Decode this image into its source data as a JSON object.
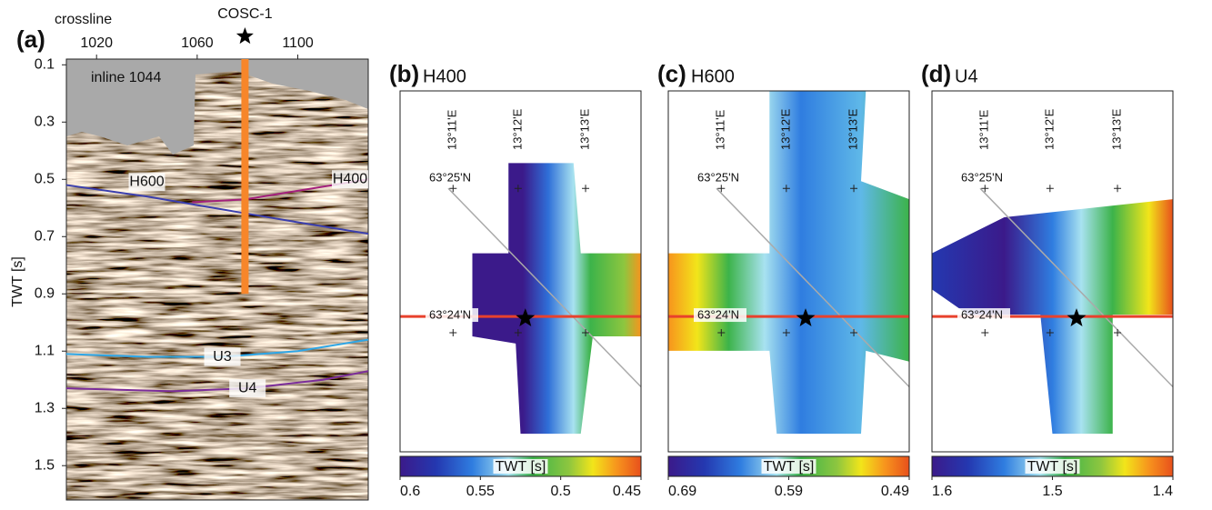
{
  "panel_a": {
    "label": "(a)",
    "x_label": "crossline",
    "xlim": [
      1008,
      1128
    ],
    "xticks": [
      1020,
      1060,
      1100
    ],
    "y_label": "TWT [s]",
    "ylim": [
      0.08,
      1.62
    ],
    "yticks": [
      0.1,
      0.3,
      0.5,
      0.7,
      0.9,
      1.1,
      1.3,
      1.5
    ],
    "inline_label": "inline 1044",
    "well": {
      "name": "COSC-1",
      "crossline": 1079,
      "bottom_twt": 0.9,
      "color": "#f7862a"
    },
    "horizons": [
      {
        "name": "H600",
        "color": "#3b3fae",
        "points": [
          [
            1008,
            0.52
          ],
          [
            1040,
            0.56
          ],
          [
            1060,
            0.59
          ],
          [
            1080,
            0.62
          ],
          [
            1100,
            0.65
          ],
          [
            1128,
            0.69
          ]
        ]
      },
      {
        "name": "H400",
        "color": "#a3207c",
        "points": [
          [
            1058,
            0.58
          ],
          [
            1079,
            0.57
          ],
          [
            1100,
            0.54
          ],
          [
            1128,
            0.5
          ]
        ]
      },
      {
        "name": "U3",
        "color": "#2ea6e6",
        "points": [
          [
            1008,
            1.11
          ],
          [
            1040,
            1.12
          ],
          [
            1070,
            1.12
          ],
          [
            1100,
            1.1
          ],
          [
            1128,
            1.06
          ]
        ]
      },
      {
        "name": "U4",
        "color": "#7b2d9a",
        "points": [
          [
            1008,
            1.23
          ],
          [
            1050,
            1.24
          ],
          [
            1080,
            1.23
          ],
          [
            1110,
            1.2
          ],
          [
            1128,
            1.17
          ]
        ]
      }
    ]
  },
  "maps": [
    {
      "label": "(b)",
      "title": "H400",
      "lon_labels": [
        "13°11'E",
        "13°12'E",
        "13°13'E"
      ],
      "lat_labels": [
        "63°25'N",
        "63°24'N"
      ],
      "colorbar": {
        "label": "TWT [s]",
        "range": [
          0.6,
          0.45
        ],
        "ticks": [
          0.6,
          0.55,
          0.5,
          0.45
        ]
      }
    },
    {
      "label": "(c)",
      "title": "H600",
      "lon_labels": [
        "13°11'E",
        "13°12'E",
        "13°13'E"
      ],
      "lat_labels": [
        "63°25'N",
        "63°24'N"
      ],
      "colorbar": {
        "label": "TWT [s]",
        "range": [
          0.69,
          0.49
        ],
        "ticks": [
          0.69,
          0.59,
          0.49
        ]
      }
    },
    {
      "label": "(d)",
      "title": "U4",
      "lon_labels": [
        "13°11'E",
        "13°12'E",
        "13°13'E"
      ],
      "lat_labels": [
        "63°25'N",
        "63°24'N"
      ],
      "colorbar": {
        "label": "TWT [s]",
        "range": [
          1.6,
          1.4
        ],
        "ticks": [
          1.6,
          1.5,
          1.4
        ]
      }
    }
  ]
}
